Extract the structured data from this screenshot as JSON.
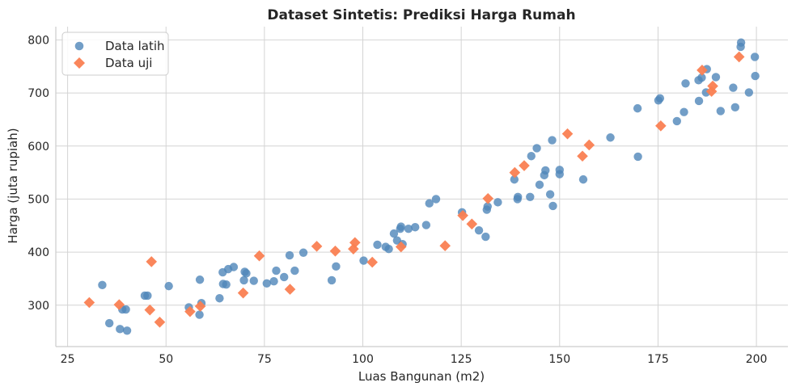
{
  "chart_data": {
    "type": "scatter",
    "title": "Dataset Sintetis: Prediksi Harga Rumah",
    "xlabel": "Luas Bangunan (m2)",
    "ylabel": "Harga (juta rupiah)",
    "xlim": [
      22,
      208
    ],
    "ylim": [
      222,
      825
    ],
    "xticks": [
      25,
      50,
      75,
      100,
      125,
      150,
      175,
      200
    ],
    "yticks": [
      300,
      400,
      500,
      600,
      700,
      800
    ],
    "grid": true,
    "legend_position": "top-left",
    "series": [
      {
        "name": "Data latih",
        "marker": "circle",
        "color": "#4f86b9",
        "points": [
          [
            33.8,
            338
          ],
          [
            35.6,
            266
          ],
          [
            38.3,
            255
          ],
          [
            38.9,
            292
          ],
          [
            39.8,
            292
          ],
          [
            40.1,
            252
          ],
          [
            44.6,
            318
          ],
          [
            45.3,
            318
          ],
          [
            50.7,
            336
          ],
          [
            55.8,
            296
          ],
          [
            58.5,
            282
          ],
          [
            58.6,
            348
          ],
          [
            59.0,
            304
          ],
          [
            63.6,
            313
          ],
          [
            64.4,
            362
          ],
          [
            64.5,
            340
          ],
          [
            65.3,
            339
          ],
          [
            65.8,
            368
          ],
          [
            67.2,
            372
          ],
          [
            69.8,
            347
          ],
          [
            70.0,
            363
          ],
          [
            70.4,
            360
          ],
          [
            72.3,
            346
          ],
          [
            75.6,
            341
          ],
          [
            77.4,
            345
          ],
          [
            78.0,
            365
          ],
          [
            80.0,
            353
          ],
          [
            81.4,
            394
          ],
          [
            82.7,
            365
          ],
          [
            84.9,
            399
          ],
          [
            92.1,
            347
          ],
          [
            93.2,
            373
          ],
          [
            100.2,
            384
          ],
          [
            103.7,
            414
          ],
          [
            105.8,
            410
          ],
          [
            106.6,
            406
          ],
          [
            107.9,
            435
          ],
          [
            108.7,
            422
          ],
          [
            109.5,
            444
          ],
          [
            109.7,
            448
          ],
          [
            110.1,
            415
          ],
          [
            111.6,
            444
          ],
          [
            113.3,
            447
          ],
          [
            116.1,
            451
          ],
          [
            116.9,
            492
          ],
          [
            118.6,
            500
          ],
          [
            125.2,
            475
          ],
          [
            129.5,
            441
          ],
          [
            131.2,
            429
          ],
          [
            131.5,
            480
          ],
          [
            131.7,
            486
          ],
          [
            134.3,
            494
          ],
          [
            138.5,
            537
          ],
          [
            139.3,
            500
          ],
          [
            139.4,
            504
          ],
          [
            142.5,
            504
          ],
          [
            142.8,
            581
          ],
          [
            144.2,
            596
          ],
          [
            144.9,
            527
          ],
          [
            146.1,
            545
          ],
          [
            146.4,
            554
          ],
          [
            147.6,
            509
          ],
          [
            148.1,
            611
          ],
          [
            148.3,
            487
          ],
          [
            150.0,
            555
          ],
          [
            150.0,
            547
          ],
          [
            156.0,
            537
          ],
          [
            162.9,
            616
          ],
          [
            169.8,
            671
          ],
          [
            169.9,
            580
          ],
          [
            175.1,
            686
          ],
          [
            175.5,
            690
          ],
          [
            179.8,
            647
          ],
          [
            181.6,
            664
          ],
          [
            182.0,
            718
          ],
          [
            185.3,
            724
          ],
          [
            185.4,
            685
          ],
          [
            186.1,
            729
          ],
          [
            187.2,
            701
          ],
          [
            187.4,
            745
          ],
          [
            189.7,
            730
          ],
          [
            190.9,
            666
          ],
          [
            194.1,
            710
          ],
          [
            194.6,
            673
          ],
          [
            196.0,
            787
          ],
          [
            196.1,
            795
          ],
          [
            198.1,
            701
          ],
          [
            199.6,
            768
          ],
          [
            199.7,
            732
          ]
        ]
      },
      {
        "name": "Data uji",
        "marker": "diamond",
        "color": "#fa7f52",
        "points": [
          [
            30.5,
            305
          ],
          [
            38.1,
            301
          ],
          [
            45.9,
            291
          ],
          [
            46.3,
            382
          ],
          [
            48.4,
            268
          ],
          [
            56.1,
            288
          ],
          [
            58.7,
            298
          ],
          [
            69.6,
            323
          ],
          [
            73.7,
            393
          ],
          [
            81.5,
            330
          ],
          [
            88.3,
            411
          ],
          [
            93.0,
            402
          ],
          [
            97.6,
            406
          ],
          [
            98.0,
            418
          ],
          [
            102.4,
            381
          ],
          [
            109.7,
            410
          ],
          [
            120.9,
            412
          ],
          [
            125.4,
            469
          ],
          [
            127.7,
            453
          ],
          [
            131.8,
            501
          ],
          [
            138.6,
            550
          ],
          [
            141.0,
            563
          ],
          [
            152.0,
            623
          ],
          [
            155.8,
            581
          ],
          [
            157.5,
            602
          ],
          [
            175.7,
            638
          ],
          [
            186.2,
            743
          ],
          [
            188.6,
            703
          ],
          [
            188.9,
            713
          ],
          [
            195.6,
            768
          ]
        ]
      }
    ]
  }
}
